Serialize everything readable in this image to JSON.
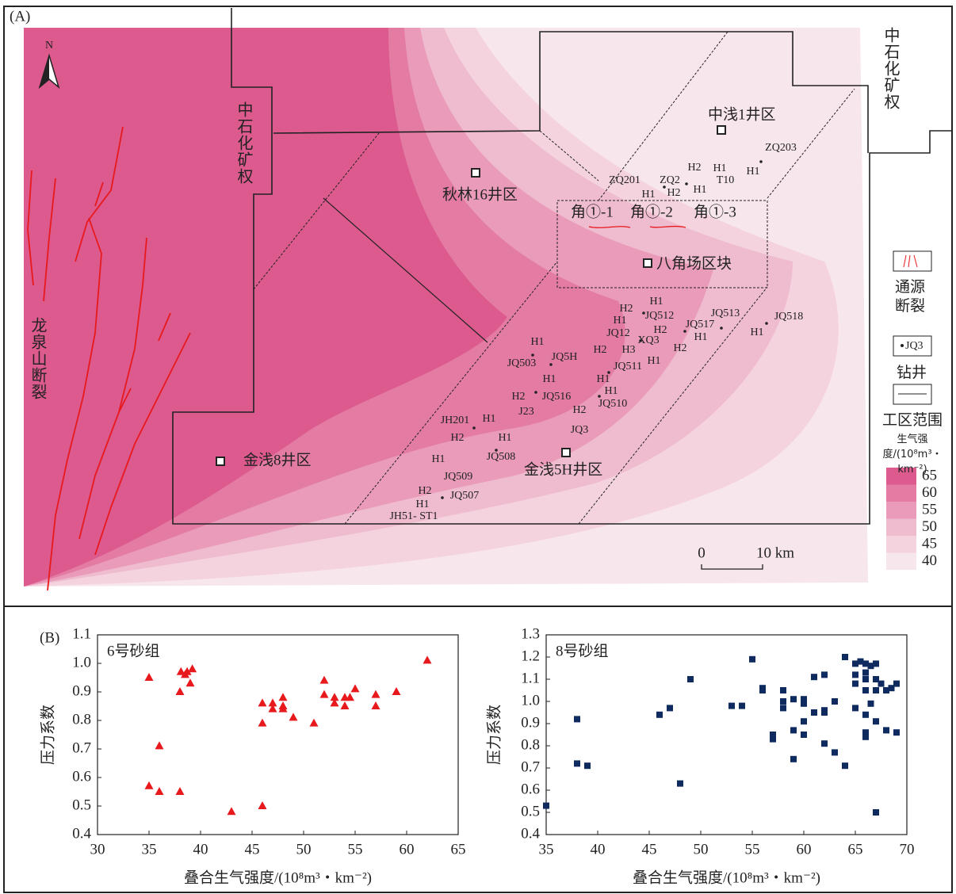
{
  "panel_a": {
    "label": "(A)",
    "north": "N",
    "areas": [
      "中石化矿权",
      "中石化矿权",
      "中浅1井区",
      "秋林16井区",
      "八角场区块",
      "金浅8井区",
      "金浅5H井区"
    ],
    "fault_name": "龙泉山断裂",
    "zones": [
      "角①-1",
      "角①-2",
      "角①-3"
    ],
    "wells": [
      "ZQ203",
      "H1",
      "H1",
      "H2",
      "T10",
      "ZQ201",
      "ZQ2",
      "H1",
      "H2",
      "H1",
      "H1",
      "H2",
      "H1",
      "JQ512",
      "JQ12",
      "H2",
      "JQ517",
      "JQ513",
      "XQ3",
      "H1",
      "JQ518",
      "H1",
      "H2",
      "H3",
      "H2",
      "H1",
      "JQ511",
      "H1",
      "H1",
      "JQ510",
      "H2",
      "JQ3",
      "H1",
      "JQ503",
      "JQ5H",
      "H1",
      "H2",
      "JQ516",
      "J23",
      "JH201",
      "H1",
      "H2",
      "H1",
      "JQ508",
      "H1",
      "JQ509",
      "H2",
      "JQ507",
      "H1",
      "JH51- ST1"
    ],
    "scale_bar": [
      "0",
      "10 km"
    ],
    "legend": {
      "fault": "通源断裂",
      "well_sample": "JQ3",
      "well": "钻井",
      "boundary": "工区范围",
      "scale_title": "生气强度/(10⁸m³・km⁻²)",
      "scale_ticks": [
        65,
        60,
        55,
        50,
        45,
        40
      ],
      "colors": [
        "#dc5a8e",
        "#e37ba3",
        "#e99bb9",
        "#efbbce",
        "#f4d3df",
        "#f8e6ed"
      ]
    }
  },
  "panel_b": {
    "label": "(B)"
  },
  "chart_data": [
    {
      "type": "scatter",
      "title": "6号砂组",
      "xlabel": "叠合生气强度/(10⁸m³・km⁻²)",
      "ylabel": "压力系数",
      "marker": "triangle",
      "color": "#e8191c",
      "x": [
        35,
        35,
        36,
        36,
        38,
        38.1,
        38.7,
        39.2,
        38.5,
        39,
        38,
        43,
        46,
        46,
        46,
        47,
        47,
        48,
        48,
        48,
        49,
        51,
        52,
        52,
        53,
        53,
        54,
        54,
        54.5,
        55,
        57,
        57,
        59,
        62
      ],
      "values": [
        0.95,
        0.57,
        0.71,
        0.55,
        0.55,
        0.97,
        0.97,
        0.98,
        0.96,
        0.93,
        0.9,
        0.48,
        0.5,
        0.86,
        0.79,
        0.86,
        0.84,
        0.88,
        0.85,
        0.84,
        0.81,
        0.79,
        0.94,
        0.89,
        0.88,
        0.86,
        0.88,
        0.85,
        0.88,
        0.91,
        0.89,
        0.85,
        0.9,
        1.01
      ],
      "xlim": [
        30,
        65
      ],
      "xticks": [
        30,
        35,
        40,
        45,
        50,
        55,
        60,
        65
      ],
      "ylim": [
        0.4,
        1.1
      ],
      "yticks": [
        0.4,
        0.5,
        0.6,
        0.7,
        0.8,
        0.9,
        {
          "value": 1,
          "label": "1.0"
        },
        1.1
      ]
    },
    {
      "type": "scatter",
      "title": "8号砂组",
      "xlabel": "叠合生气强度/(10⁸m³・km⁻²)",
      "ylabel": "压力系数",
      "marker": "square",
      "color": "#0f2a5e",
      "x": [
        35,
        38,
        38,
        39,
        46,
        47,
        48,
        49,
        53,
        54,
        55,
        56,
        56,
        57,
        57,
        58,
        58,
        58,
        59,
        59,
        59,
        60,
        60,
        60,
        60,
        61,
        61,
        62,
        62,
        62,
        62,
        63,
        63,
        64,
        64,
        65,
        65,
        65,
        65,
        65.5,
        66,
        66,
        66,
        66,
        66,
        66,
        66,
        66.5,
        66.5,
        67,
        67,
        67,
        67,
        67,
        67.5,
        68,
        68,
        68.5,
        69,
        69
      ],
      "values": [
        0.53,
        0.92,
        0.72,
        0.71,
        0.94,
        0.97,
        0.63,
        1.1,
        0.98,
        0.98,
        1.19,
        1.06,
        1.05,
        0.85,
        0.83,
        1.05,
        1.0,
        0.97,
        1.01,
        0.87,
        0.74,
        0.91,
        0.85,
        1.01,
        0.99,
        0.95,
        1.11,
        1.12,
        0.96,
        0.95,
        0.81,
        1.0,
        0.77,
        0.71,
        1.2,
        1.17,
        1.12,
        1.08,
        0.97,
        1.18,
        1.17,
        1.13,
        1.1,
        1.05,
        0.94,
        0.86,
        0.84,
        1.16,
        0.99,
        1.17,
        1.1,
        1.05,
        0.91,
        0.5,
        1.08,
        1.05,
        0.87,
        1.06,
        1.08,
        0.86
      ],
      "xlim": [
        35,
        70
      ],
      "xticks": [
        35,
        40,
        45,
        50,
        55,
        60,
        65,
        70
      ],
      "ylim": [
        0.4,
        1.3
      ],
      "yticks": [
        0.4,
        0.5,
        0.6,
        0.7,
        0.8,
        0.9,
        {
          "value": 1,
          "label": "1.0"
        },
        1.1,
        1.2,
        1.3
      ]
    }
  ]
}
